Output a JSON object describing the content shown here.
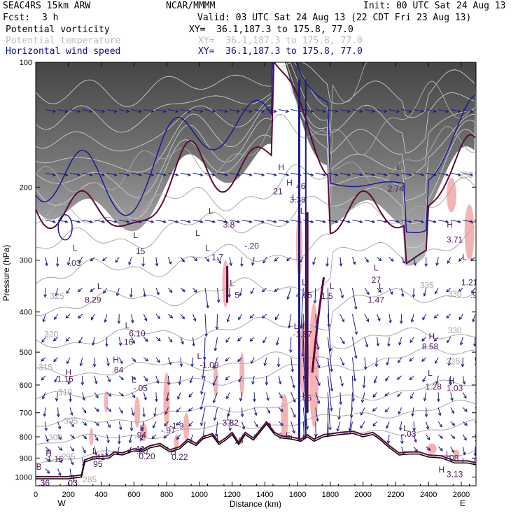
{
  "header": {
    "model": "SEAC4RS 15km ARW",
    "org": "NCAR/MMMM",
    "init": "Init: 00 UTC Sat 24 Aug 13",
    "fcst_label": "Fcst:",
    "fcst_value": "3 h",
    "valid": "Valid: 03 UTC Sat 24 Aug 13 (22 CDT Fri 23 Aug 13)"
  },
  "legend": [
    {
      "name": "Potential vorticity",
      "xy": "XY=  36.1,187.3 to 175.8, 77.0",
      "color": "#000000"
    },
    {
      "name": "Potential temperature",
      "xy": "XY=  36.1,187.3 to 175.8, 77.0",
      "color": "#bbbbbb"
    },
    {
      "name": "Horizontal wind speed",
      "xy": "XY=  36.1,187.3 to 175.8, 77.0",
      "color": "#0b0b88"
    }
  ],
  "colors": {
    "pv_label": "#4b1a5a",
    "theta": "#a8a8a8",
    "wind": "#1a1a80",
    "pv_line": "#5a0a3a",
    "terrain": "#000000",
    "highlight": "#f5b4b4",
    "stratosphere": "#555555"
  },
  "chart_data": {
    "type": "cross-section",
    "xlabel": "Distance (km)",
    "ylabel": "Pressure (hPa)",
    "xlim": [
      0,
      2690
    ],
    "ylim": [
      1050,
      100
    ],
    "y_scale": "log",
    "x_ticks": [
      0,
      200,
      400,
      600,
      800,
      1000,
      1200,
      1400,
      1600,
      1800,
      2000,
      2200,
      2400,
      2600
    ],
    "y_ticks": [
      100,
      200,
      300,
      400,
      500,
      600,
      700,
      800,
      900,
      1000
    ],
    "end_labels": {
      "left": "W",
      "right": "E"
    },
    "terrain": [
      [
        0,
        1010
      ],
      [
        200,
        1010
      ],
      [
        280,
        1000
      ],
      [
        300,
        920
      ],
      [
        350,
        905
      ],
      [
        450,
        900
      ],
      [
        480,
        880
      ],
      [
        530,
        885
      ],
      [
        600,
        865
      ],
      [
        650,
        870
      ],
      [
        700,
        850
      ],
      [
        760,
        840
      ],
      [
        820,
        870
      ],
      [
        880,
        855
      ],
      [
        930,
        820
      ],
      [
        980,
        840
      ],
      [
        1020,
        810
      ],
      [
        1080,
        795
      ],
      [
        1120,
        835
      ],
      [
        1160,
        815
      ],
      [
        1200,
        790
      ],
      [
        1240,
        835
      ],
      [
        1280,
        790
      ],
      [
        1330,
        815
      ],
      [
        1370,
        780
      ],
      [
        1410,
        745
      ],
      [
        1460,
        790
      ],
      [
        1500,
        805
      ],
      [
        1560,
        810
      ],
      [
        1620,
        820
      ],
      [
        1660,
        800
      ],
      [
        1700,
        820
      ],
      [
        1760,
        800
      ],
      [
        1860,
        790
      ],
      [
        1940,
        785
      ],
      [
        2000,
        800
      ],
      [
        2060,
        790
      ],
      [
        2100,
        810
      ],
      [
        2160,
        850
      ],
      [
        2220,
        885
      ],
      [
        2280,
        880
      ],
      [
        2340,
        880
      ],
      [
        2400,
        895
      ],
      [
        2480,
        900
      ],
      [
        2560,
        925
      ],
      [
        2640,
        925
      ],
      [
        2690,
        935
      ]
    ],
    "theta_labels": [
      {
        "text": "325",
        "x": 130,
        "p": 372
      },
      {
        "text": "320",
        "x": 95,
        "p": 460
      },
      {
        "text": "315",
        "x": 60,
        "p": 552
      },
      {
        "text": "310",
        "x": 180,
        "p": 635
      },
      {
        "text": "305",
        "x": 215,
        "p": 745
      },
      {
        "text": "300",
        "x": 120,
        "p": 815
      },
      {
        "text": "295",
        "x": 200,
        "p": 908
      },
      {
        "text": "285",
        "x": 330,
        "p": 1030
      },
      {
        "text": "335",
        "x": 2390,
        "p": 350
      },
      {
        "text": "330",
        "x": 2560,
        "p": 450
      },
      {
        "text": "325",
        "x": 2550,
        "p": 535
      },
      {
        "text": "350",
        "x": 2630,
        "p": 190
      },
      {
        "text": "330",
        "x": 2560,
        "p": 368
      }
    ],
    "pv_labels": [
      {
        "text": "L",
        "x": 240,
        "p": 285
      },
      {
        "text": ".03",
        "x": 240,
        "p": 310
      },
      {
        "text": "L",
        "x": 610,
        "p": 265
      },
      {
        "text": "15",
        "x": 640,
        "p": 290
      },
      {
        "text": "L",
        "x": 390,
        "p": 352
      },
      {
        "text": "8.29",
        "x": 350,
        "p": 380
      },
      {
        "text": "L",
        "x": 560,
        "p": 438
      },
      {
        "text": "6.10",
        "x": 620,
        "p": 458
      },
      {
        "text": ".16",
        "x": 560,
        "p": 480
      },
      {
        "text": "H",
        "x": 490,
        "p": 530
      },
      {
        "text": ".84",
        "x": 500,
        "p": 560
      },
      {
        "text": "H",
        "x": 200,
        "p": 568
      },
      {
        "text": "1.16",
        "x": 180,
        "p": 590
      },
      {
        "text": "L",
        "x": 600,
        "p": 592
      },
      {
        "text": "-.05",
        "x": 640,
        "p": 620
      },
      {
        "text": "L",
        "x": 1000,
        "p": 520
      },
      {
        "text": "-1.09",
        "x": 1060,
        "p": 545
      },
      {
        "text": "L",
        "x": 990,
        "p": 262
      },
      {
        "text": "L",
        "x": 1050,
        "p": 285
      },
      {
        "text": "1.7",
        "x": 1110,
        "p": 300
      },
      {
        "text": "L",
        "x": 1070,
        "p": 232
      },
      {
        "text": "3.8",
        "x": 1180,
        "p": 250
      },
      {
        "text": "L",
        "x": 1200,
        "p": 346
      },
      {
        "text": "5",
        "x": 1230,
        "p": 370
      },
      {
        "text": "H",
        "x": 1500,
        "p": 182
      },
      {
        "text": "21",
        "x": 1480,
        "p": 208
      },
      {
        "text": "H",
        "x": 1550,
        "p": 198
      },
      {
        "text": "46",
        "x": 1620,
        "p": 202
      },
      {
        "text": "L",
        "x": 1580,
        "p": 215
      },
      {
        "text": "3.38",
        "x": 1600,
        "p": 218
      },
      {
        "text": "L",
        "x": 1630,
        "p": 232
      },
      {
        "text": "-.20",
        "x": 1320,
        "p": 282
      },
      {
        "text": "L",
        "x": 1640,
        "p": 345
      },
      {
        "text": "4.65",
        "x": 1640,
        "p": 370
      },
      {
        "text": "L",
        "x": 1810,
        "p": 352
      },
      {
        "text": "1.5",
        "x": 1780,
        "p": 372
      },
      {
        "text": "LH",
        "x": 1610,
        "p": 440
      },
      {
        "text": "-1.87",
        "x": 1630,
        "p": 460
      },
      {
        "text": "L",
        "x": 2220,
        "p": 182
      },
      {
        "text": "2.74",
        "x": 2200,
        "p": 205
      },
      {
        "text": "L",
        "x": 2080,
        "p": 318
      },
      {
        "text": "27",
        "x": 2080,
        "p": 340
      },
      {
        "text": "L",
        "x": 2110,
        "p": 352
      },
      {
        "text": "1.47",
        "x": 2080,
        "p": 380
      },
      {
        "text": "H",
        "x": 2530,
        "p": 250
      },
      {
        "text": "3.71",
        "x": 2560,
        "p": 272
      },
      {
        "text": "H",
        "x": 2420,
        "p": 465
      },
      {
        "text": "8.58",
        "x": 2410,
        "p": 492
      },
      {
        "text": "L",
        "x": 2620,
        "p": 300
      },
      {
        "text": "1.21",
        "x": 2650,
        "p": 345
      },
      {
        "text": ".92",
        "x": 2690,
        "p": 370
      },
      {
        "text": "-.44",
        "x": 2690,
        "p": 245
      },
      {
        "text": "L",
        "x": 2410,
        "p": 570
      },
      {
        "text": "1.28",
        "x": 2430,
        "p": 615
      },
      {
        "text": "H",
        "x": 2540,
        "p": 595
      },
      {
        "text": "1.03",
        "x": 2560,
        "p": 620
      },
      {
        "text": ".85",
        "x": 1650,
        "p": 655
      },
      {
        "text": "L",
        "x": 1180,
        "p": 730
      },
      {
        "text": "3.82",
        "x": 1190,
        "p": 752
      },
      {
        "text": "L",
        "x": 650,
        "p": 775
      },
      {
        "text": ".94",
        "x": 640,
        "p": 805
      },
      {
        "text": "-1.9",
        "x": 860,
        "p": 765
      },
      {
        "text": "-.97",
        "x": 810,
        "p": 785
      },
      {
        "text": ".40",
        "x": 630,
        "p": 870
      },
      {
        "text": ".20",
        "x": 650,
        "p": 880
      },
      {
        "text": "0.20",
        "x": 680,
        "p": 905
      },
      {
        "text": "H",
        "x": 840,
        "p": 885
      },
      {
        "text": "0.22",
        "x": 880,
        "p": 910
      },
      {
        "text": "L",
        "x": 360,
        "p": 880
      },
      {
        "text": "-.41",
        "x": 380,
        "p": 910
      },
      {
        "text": "95",
        "x": 380,
        "p": 945
      },
      {
        "text": "H",
        "x": 80,
        "p": 890
      },
      {
        "text": "1.16",
        "x": 120,
        "p": 918
      },
      {
        "text": "L",
        "x": 2260,
        "p": 775
      },
      {
        "text": "-.03",
        "x": 2280,
        "p": 800
      },
      {
        "text": "L",
        "x": 2520,
        "p": 895
      },
      {
        "text": "-.08",
        "x": 2540,
        "p": 915
      },
      {
        "text": "H",
        "x": 2480,
        "p": 975
      },
      {
        "text": "3.13",
        "x": 2560,
        "p": 1000
      },
      {
        "text": "1.5",
        "x": 1520,
        "p": 808
      },
      {
        "text": "15",
        "x": 1240,
        "p": 830
      },
      {
        "text": "L",
        "x": 240,
        "p": 1030
      },
      {
        "text": ".36",
        "x": 50,
        "p": 1050
      },
      {
        "text": ".03",
        "x": 220,
        "p": 1050
      },
      {
        "text": "B",
        "x": 20,
        "p": 960
      }
    ]
  }
}
